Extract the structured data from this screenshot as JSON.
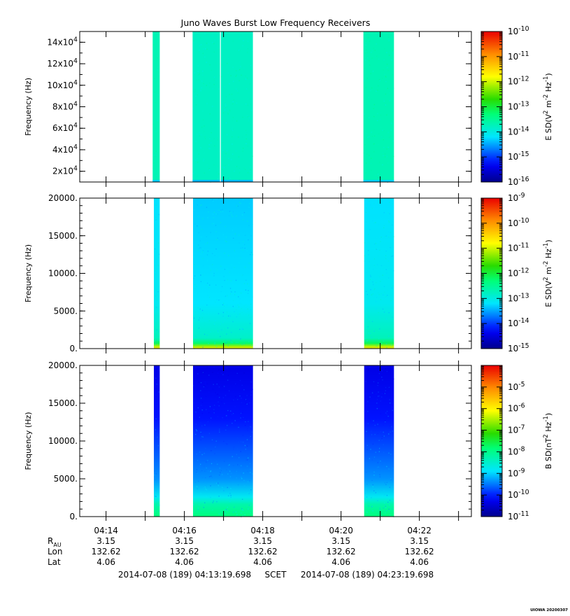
{
  "title": "Juno Waves Burst Low Frequency Receivers",
  "stamp": "UIOWA 20200307",
  "time_axis": {
    "start_min": 13.328,
    "end_min": 23.328,
    "tick_labels": [
      {
        "min": 14,
        "label": "04:14"
      },
      {
        "min": 16,
        "label": "04:16"
      },
      {
        "min": 18,
        "label": "04:18"
      },
      {
        "min": 20,
        "label": "04:20"
      },
      {
        "min": 22,
        "label": "04:22"
      }
    ],
    "minor_ticks_min": [
      13,
      15,
      17,
      19,
      21,
      23
    ]
  },
  "ephemeris": {
    "rows": [
      {
        "label_main": "R",
        "label_sub": "AU",
        "values": [
          "3.15",
          "3.15",
          "3.15",
          "3.15",
          "3.15"
        ]
      },
      {
        "label_main": "Lon",
        "label_sub": "",
        "values": [
          "132.62",
          "132.62",
          "132.62",
          "132.62",
          "132.62"
        ]
      },
      {
        "label_main": "Lat",
        "label_sub": "",
        "values": [
          "4.06",
          "4.06",
          "4.06",
          "4.06",
          "4.06"
        ]
      }
    ],
    "range_start": "2014-07-08 (189) 04:13:19.698",
    "scet": "SCET",
    "range_end": "2014-07-08 (189) 04:23:19.698"
  },
  "chart_data": [
    {
      "type": "heatmap",
      "ylabel": "Frequency (Hz)",
      "ylim": [
        10000,
        150000
      ],
      "yticks": [
        {
          "value": 20000,
          "mant": "2x10",
          "exp": "4"
        },
        {
          "value": 40000,
          "mant": "4x10",
          "exp": "4"
        },
        {
          "value": 60000,
          "mant": "6x10",
          "exp": "4"
        },
        {
          "value": 80000,
          "mant": "8x10",
          "exp": "4"
        },
        {
          "value": 100000,
          "mant": "10x10",
          "exp": "4"
        },
        {
          "value": 120000,
          "mant": "12x10",
          "exp": "4"
        },
        {
          "value": 140000,
          "mant": "14x10",
          "exp": "4"
        }
      ],
      "colorbar": {
        "label_main": "E SD(V",
        "label_exp1": "2",
        "label_mid": " m",
        "label_exp2": "-2",
        "label_mid2": " Hz",
        "label_exp3": "-1",
        "label_end": ")",
        "scale": "log",
        "range_exp": [
          -16,
          -10
        ],
        "ticks": [
          {
            "exp": "-10"
          },
          {
            "exp": "-11"
          },
          {
            "exp": "-12"
          },
          {
            "exp": "-13"
          },
          {
            "exp": "-14"
          },
          {
            "exp": "-15"
          },
          {
            "exp": "-16"
          }
        ]
      },
      "bursts": [
        {
          "start_min": 15.19,
          "end_min": 15.37,
          "level": -13.7
        },
        {
          "start_min": 16.21,
          "end_min": 17.75,
          "level": -13.8
        },
        {
          "start_min": 20.57,
          "end_min": 21.35,
          "level": -13.7
        }
      ]
    },
    {
      "type": "heatmap",
      "ylabel": "Frequency (Hz)",
      "ylim": [
        0,
        20000
      ],
      "yticks": [
        {
          "value": 0,
          "label": "0."
        },
        {
          "value": 5000,
          "label": "5000."
        },
        {
          "value": 10000,
          "label": "10000."
        },
        {
          "value": 15000,
          "label": "15000."
        },
        {
          "value": 20000,
          "label": "20000."
        }
      ],
      "colorbar": {
        "label_main": "E SD(V",
        "label_exp1": "2",
        "label_mid": " m",
        "label_exp2": "-2",
        "label_mid2": " Hz",
        "label_exp3": "-1",
        "label_end": ")",
        "scale": "log",
        "range_exp": [
          -15,
          -9
        ],
        "ticks": [
          {
            "exp": "-9"
          },
          {
            "exp": "-10"
          },
          {
            "exp": "-11"
          },
          {
            "exp": "-12"
          },
          {
            "exp": "-13"
          },
          {
            "exp": "-14"
          },
          {
            "exp": "-15"
          }
        ]
      },
      "bursts": [
        {
          "start_min": 15.22,
          "end_min": 15.37,
          "level": -13.1
        },
        {
          "start_min": 16.22,
          "end_min": 17.75,
          "level": -13.2
        },
        {
          "start_min": 20.59,
          "end_min": 21.35,
          "level": -13.1
        }
      ]
    },
    {
      "type": "heatmap",
      "ylabel": "Frequency (Hz)",
      "ylim": [
        0,
        20000
      ],
      "yticks": [
        {
          "value": 0,
          "label": "0."
        },
        {
          "value": 5000,
          "label": "5000."
        },
        {
          "value": 10000,
          "label": "10000."
        },
        {
          "value": 15000,
          "label": "15000."
        },
        {
          "value": 20000,
          "label": "20000."
        }
      ],
      "colorbar": {
        "label_main": "B SD(nT",
        "label_exp1": "2",
        "label_mid": " Hz",
        "label_exp2": "-1",
        "label_mid2": "",
        "label_exp3": "",
        "label_end": ")",
        "scale": "log",
        "range_exp": [
          -11,
          -4
        ],
        "ticks": [
          {
            "exp": "-5"
          },
          {
            "exp": "-6"
          },
          {
            "exp": "-7"
          },
          {
            "exp": "-8"
          },
          {
            "exp": "-9"
          },
          {
            "exp": "-10"
          },
          {
            "exp": "-11"
          }
        ]
      },
      "bursts": [
        {
          "start_min": 15.22,
          "end_min": 15.37,
          "level": -10.2
        },
        {
          "start_min": 16.22,
          "end_min": 17.75,
          "level": -10.2
        },
        {
          "start_min": 20.59,
          "end_min": 21.35,
          "level": -10.2
        }
      ]
    }
  ]
}
